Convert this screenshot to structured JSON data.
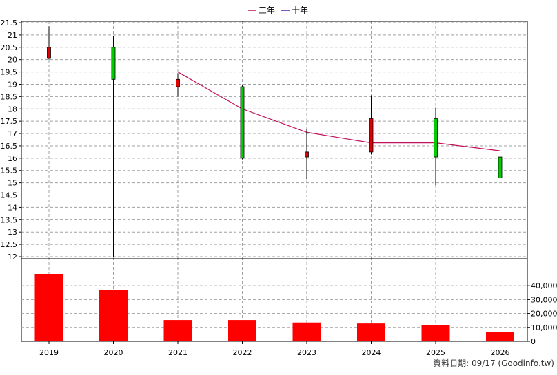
{
  "legend": {
    "three_year": "三年",
    "ten_year": "十年"
  },
  "footer": {
    "text": "資料日期: 09/17  (Goodinfo.tw)"
  },
  "colors": {
    "up": "#e00000",
    "down": "#00cc00",
    "three_year_line": "#c0105a",
    "ten_year_line": "#5020a0",
    "volume": "#ff0000"
  },
  "chart_data": [
    {
      "type": "candlestick",
      "categories": [
        "2019",
        "2020",
        "2021",
        "2022",
        "2023",
        "2024",
        "2025",
        "2026"
      ],
      "ylim": [
        12,
        21.5
      ],
      "ytick_step": 0.5,
      "grid": true,
      "legend_position": "top-center",
      "candles": [
        {
          "x": "2019",
          "open": 20.05,
          "close": 20.5,
          "high": 21.35,
          "low": 20.0
        },
        {
          "x": "2020",
          "open": 20.5,
          "close": 19.2,
          "high": 20.95,
          "low": 12.0
        },
        {
          "x": "2021",
          "open": 18.9,
          "close": 19.2,
          "high": 19.45,
          "low": 18.5
        },
        {
          "x": "2022",
          "open": 18.9,
          "close": 16.0,
          "high": 18.95,
          "low": 15.95
        },
        {
          "x": "2023",
          "open": 16.05,
          "close": 16.25,
          "high": 17.2,
          "low": 15.15
        },
        {
          "x": "2024",
          "open": 16.25,
          "close": 17.6,
          "high": 18.55,
          "low": 16.15
        },
        {
          "x": "2025",
          "open": 17.6,
          "close": 16.05,
          "high": 18.05,
          "low": 14.9
        },
        {
          "x": "2026",
          "open": 16.05,
          "close": 15.2,
          "high": 16.45,
          "low": 15.0
        }
      ],
      "series": [
        {
          "name": "三年",
          "x": [
            "2021",
            "2022",
            "2023",
            "2024",
            "2025",
            "2026"
          ],
          "values": [
            19.5,
            18.0,
            17.05,
            16.62,
            16.62,
            16.3
          ]
        }
      ]
    },
    {
      "type": "bar",
      "categories": [
        "2019",
        "2020",
        "2021",
        "2022",
        "2023",
        "2024",
        "2025",
        "2026"
      ],
      "values": [
        48500,
        37000,
        15300,
        15300,
        13500,
        12800,
        11800,
        6500
      ],
      "ylim": [
        0,
        48000
      ],
      "yticks": [
        0,
        10000,
        20000,
        30000,
        40000
      ],
      "ytick_labels": [
        "0",
        "10,000",
        "20,000",
        "30,000",
        "40,000"
      ],
      "grid": true
    }
  ]
}
